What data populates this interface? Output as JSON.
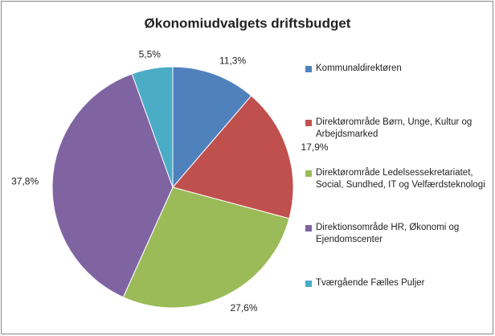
{
  "chart_data": {
    "type": "pie",
    "title": "Økonomiudvalgets driftsbudget",
    "categories": [
      "Kommunaldirektøren",
      "Direktørområde Børn, Unge, Kultur og Arbejdsmarked",
      "Direktørområde Ledelsessekretariatet, Social, Sundhed, IT og Velfærdsteknologi",
      "Direktionsområde HR, Økonomi og Ejendomscenter",
      "Tværgående Fælles Puljer"
    ],
    "values": [
      11.3,
      17.9,
      27.6,
      37.8,
      5.5
    ],
    "value_labels": [
      "11,3%",
      "17,9%",
      "27,6%",
      "37,8%",
      "5,5%"
    ],
    "colors": [
      "#4f81bd",
      "#c0504d",
      "#9bbb59",
      "#8064a2",
      "#4bacc6"
    ],
    "legend": "right"
  }
}
